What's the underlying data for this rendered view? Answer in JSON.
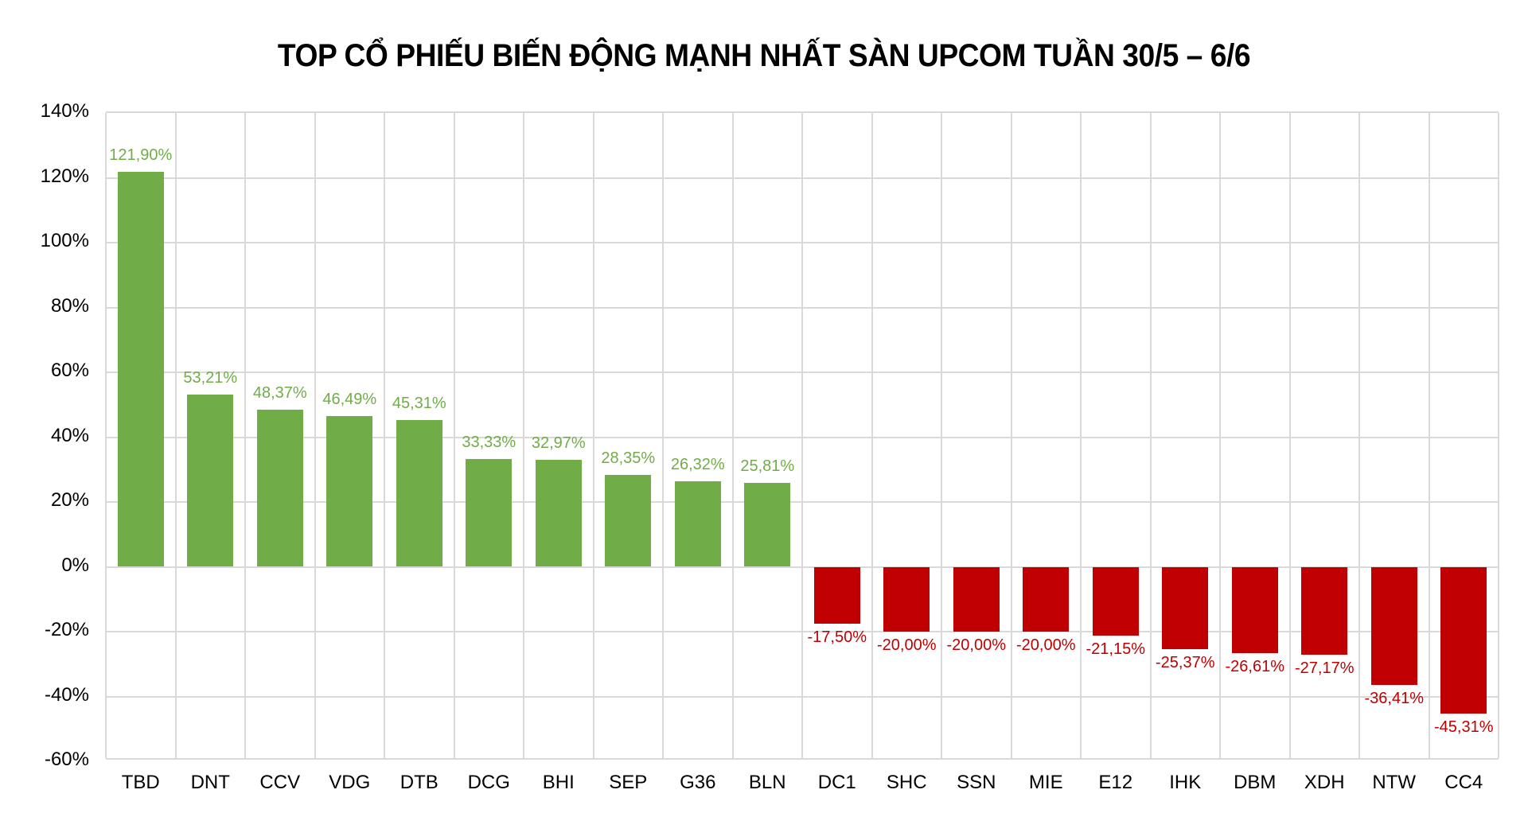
{
  "title": "TOP CỔ PHIẾU BIẾN ĐỘNG MẠNH NHẤT SÀN UPCOM TUẦN 30/5 – 6/6",
  "colors": {
    "positive": "#70ad47",
    "negative": "#c00000",
    "grid": "#d9d9d9"
  },
  "y_ticks": [
    "140%",
    "120%",
    "100%",
    "80%",
    "60%",
    "40%",
    "20%",
    "0%",
    "-20%",
    "-40%",
    "-60%"
  ],
  "chart_data": {
    "type": "bar",
    "title": "TOP CỔ PHIẾU BIẾN ĐỘNG MẠNH NHẤT SÀN UPCOM TUẦN 30/5 – 6/6",
    "xlabel": "",
    "ylabel": "",
    "ylim": [
      -60,
      140
    ],
    "yticks": [
      -60,
      -40,
      -20,
      0,
      20,
      40,
      60,
      80,
      100,
      120,
      140
    ],
    "grid": true,
    "legend": "none",
    "categories": [
      "TBD",
      "DNT",
      "CCV",
      "VDG",
      "DTB",
      "DCG",
      "BHI",
      "SEP",
      "G36",
      "BLN",
      "DC1",
      "SHC",
      "SSN",
      "MIE",
      "E12",
      "IHK",
      "DBM",
      "XDH",
      "NTW",
      "CC4"
    ],
    "values": [
      121.9,
      53.21,
      48.37,
      46.49,
      45.31,
      33.33,
      32.97,
      28.35,
      26.32,
      25.81,
      -17.5,
      -20.0,
      -20.0,
      -20.0,
      -21.15,
      -25.37,
      -26.61,
      -27.17,
      -36.41,
      -45.31
    ],
    "data_labels": [
      "121,90%",
      "53,21%",
      "48,37%",
      "46,49%",
      "45,31%",
      "33,33%",
      "32,97%",
      "28,35%",
      "26,32%",
      "25,81%",
      "-17,50%",
      "-20,00%",
      "-20,00%",
      "-20,00%",
      "-21,15%",
      "-25,37%",
      "-26,61%",
      "-27,17%",
      "-36,41%",
      "-45,31%"
    ],
    "unit": "%"
  }
}
